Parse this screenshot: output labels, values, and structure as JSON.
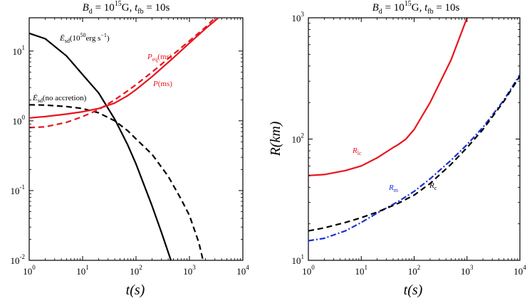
{
  "colors": {
    "black": "#000000",
    "red": "#e8141c",
    "blue": "#1a2fd6"
  },
  "chart_data": [
    {
      "type": "line",
      "title": "B_d = 10^15 G, t_fb = 10s",
      "xlabel": "t(s)",
      "ylabel": "",
      "xscale": "log",
      "yscale": "log",
      "xlim": [
        1,
        10000
      ],
      "ylim": [
        0.01,
        30
      ],
      "xticks": [
        {
          "v": 1,
          "label": "10",
          "exp": "0"
        },
        {
          "v": 10,
          "label": "10",
          "exp": "1"
        },
        {
          "v": 100,
          "label": "10",
          "exp": "2"
        },
        {
          "v": 1000,
          "label": "10",
          "exp": "3"
        },
        {
          "v": 10000,
          "label": "10",
          "exp": "4"
        }
      ],
      "yticks": [
        {
          "v": 0.01,
          "label": "10",
          "exp": "-2"
        },
        {
          "v": 0.1,
          "label": "10",
          "exp": "-1"
        },
        {
          "v": 1,
          "label": "10",
          "exp": "0"
        },
        {
          "v": 10,
          "label": "10",
          "exp": "1"
        }
      ],
      "series": [
        {
          "name": "Edot_sd(10^50 erg s^-1)",
          "color": "#000000",
          "dash": "solid",
          "x": [
            1,
            2,
            5,
            10,
            20,
            40,
            70,
            100,
            200,
            300,
            450
          ],
          "y": [
            18.0,
            15.0,
            8.5,
            4.6,
            2.5,
            1.05,
            0.45,
            0.24,
            0.06,
            0.025,
            0.01
          ]
        },
        {
          "name": "Edot_sd(no accretion)",
          "color": "#000000",
          "dash": "dashed",
          "x": [
            1,
            2,
            5,
            10,
            20,
            40,
            70,
            100,
            200,
            400,
            700,
            1000,
            1500,
            1800
          ],
          "y": [
            1.7,
            1.68,
            1.6,
            1.5,
            1.3,
            1.0,
            0.72,
            0.55,
            0.33,
            0.16,
            0.075,
            0.044,
            0.018,
            0.01
          ]
        },
        {
          "name": "P(ms)",
          "color": "#e8141c",
          "dash": "solid",
          "x": [
            1,
            2,
            5,
            10,
            20,
            40,
            70,
            100,
            200,
            500,
            1000,
            2000,
            3500
          ],
          "y": [
            1.1,
            1.15,
            1.25,
            1.35,
            1.5,
            1.8,
            2.3,
            2.8,
            4.3,
            8.0,
            13.0,
            21.0,
            30.0
          ]
        },
        {
          "name": "P_eq(ms)",
          "color": "#e8141c",
          "dash": "dashed",
          "x": [
            1,
            2,
            5,
            10,
            20,
            40,
            70,
            100,
            200,
            500,
            1000,
            2000,
            3000
          ],
          "y": [
            0.8,
            0.82,
            0.95,
            1.15,
            1.45,
            2.0,
            2.7,
            3.3,
            5.0,
            9.0,
            14.0,
            22.0,
            30.0
          ]
        }
      ],
      "annotations": [
        {
          "text": "Ė",
          "sub": "sd",
          "rest": "(10",
          "sup": "50",
          "tail": "erg s",
          "sup2": "−1",
          "end": ")",
          "color": "#000000"
        },
        {
          "text": "Ė",
          "sub": "sd",
          "rest": "(no accretion)",
          "color": "#000000"
        },
        {
          "text": "P",
          "sub": "eq",
          "rest": "(ms)",
          "color": "#e8141c"
        },
        {
          "text": "P",
          "rest": "(ms)",
          "color": "#e8141c"
        }
      ]
    },
    {
      "type": "line",
      "title": "B_d = 10^15 G, t_fb = 10s",
      "xlabel": "t(s)",
      "ylabel": "R(km)",
      "xscale": "log",
      "yscale": "log",
      "xlim": [
        1,
        10000
      ],
      "ylim": [
        10,
        1000
      ],
      "xticks": [
        {
          "v": 1,
          "label": "10",
          "exp": "0"
        },
        {
          "v": 10,
          "label": "10",
          "exp": "1"
        },
        {
          "v": 100,
          "label": "10",
          "exp": "2"
        },
        {
          "v": 1000,
          "label": "10",
          "exp": "3"
        },
        {
          "v": 10000,
          "label": "10",
          "exp": "4"
        }
      ],
      "yticks": [
        {
          "v": 10,
          "label": "10",
          "exp": "1"
        },
        {
          "v": 100,
          "label": "10",
          "exp": "2"
        },
        {
          "v": 1000,
          "label": "10",
          "exp": "3"
        }
      ],
      "series": [
        {
          "name": "R_lc",
          "color": "#e8141c",
          "dash": "solid",
          "x": [
            1,
            2,
            5,
            10,
            20,
            40,
            50,
            70,
            100,
            200,
            500,
            1000
          ],
          "y": [
            50,
            51,
            55,
            60,
            70,
            85,
            90,
            100,
            120,
            200,
            450,
            1000
          ]
        },
        {
          "name": "R_m",
          "color": "#1a2fd6",
          "dash": "dashdot",
          "x": [
            1,
            2,
            5,
            10,
            20,
            50,
            100,
            200,
            500,
            1000,
            2000,
            5000,
            10000
          ],
          "y": [
            14.5,
            15.2,
            17.5,
            20.5,
            24.5,
            30.5,
            37.0,
            47.0,
            67.0,
            90.0,
            125.0,
            210.0,
            340.0
          ]
        },
        {
          "name": "R_c",
          "color": "#000000",
          "dash": "dashed",
          "x": [
            1,
            2,
            5,
            10,
            20,
            50,
            100,
            200,
            500,
            1000,
            2000,
            5000,
            10000
          ],
          "y": [
            17.5,
            18.5,
            20.5,
            22.5,
            25.0,
            29.5,
            34.5,
            43.0,
            62.0,
            85.0,
            120.0,
            205.0,
            330.0
          ]
        }
      ],
      "annotations": [
        {
          "text": "R",
          "sub": "lc",
          "color": "#e8141c"
        },
        {
          "text": "R",
          "sub": "m",
          "color": "#1a2fd6"
        },
        {
          "text": "R",
          "sub": "c",
          "color": "#000000"
        }
      ]
    }
  ]
}
